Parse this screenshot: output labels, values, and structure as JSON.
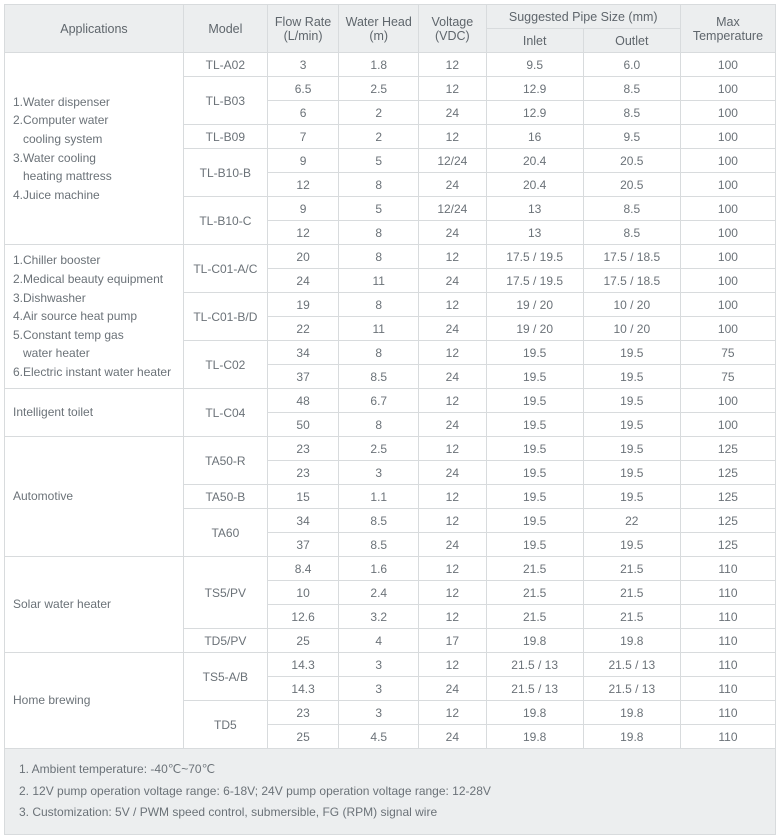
{
  "headers": {
    "applications": "Applications",
    "model": "Model",
    "flow_rate": "Flow Rate (L/min)",
    "water_head": "Water Head (m)",
    "voltage": "Voltage (VDC)",
    "pipe_group": "Suggested Pipe Size (mm)",
    "inlet": "Inlet",
    "outlet": "Outlet",
    "max_temp": "Max Temperature"
  },
  "groups": [
    {
      "app_html": "1.Water dispenser<br>2.Computer water<br>&nbsp;&nbsp;&nbsp;cooling system<br>3.Water cooling<br>&nbsp;&nbsp;&nbsp;heating mattress<br>4.Juice machine",
      "app_rowspan": 8,
      "models": [
        {
          "model": "TL-A02",
          "model_rowspan": 1,
          "rows": [
            {
              "flow": "3",
              "head": "1.8",
              "volt": "12",
              "inlet": "9.5",
              "outlet": "6.0",
              "temp": "100"
            }
          ]
        },
        {
          "model": "TL-B03",
          "model_rowspan": 2,
          "rows": [
            {
              "flow": "6.5",
              "head": "2.5",
              "volt": "12",
              "inlet": "12.9",
              "outlet": "8.5",
              "temp": "100"
            },
            {
              "flow": "6",
              "head": "2",
              "volt": "24",
              "inlet": "12.9",
              "outlet": "8.5",
              "temp": "100"
            }
          ]
        },
        {
          "model": "TL-B09",
          "model_rowspan": 1,
          "rows": [
            {
              "flow": "7",
              "head": "2",
              "volt": "12",
              "inlet": "16",
              "outlet": "9.5",
              "temp": "100"
            }
          ]
        },
        {
          "model": "TL-B10-B",
          "model_rowspan": 2,
          "rows": [
            {
              "flow": "9",
              "head": "5",
              "volt": "12/24",
              "inlet": "20.4",
              "outlet": "20.5",
              "temp": "100"
            },
            {
              "flow": "12",
              "head": "8",
              "volt": "24",
              "inlet": "20.4",
              "outlet": "20.5",
              "temp": "100"
            }
          ]
        },
        {
          "model": "TL-B10-C",
          "model_rowspan": 2,
          "rows": [
            {
              "flow": "9",
              "head": "5",
              "volt": "12/24",
              "inlet": "13",
              "outlet": "8.5",
              "temp": "100"
            },
            {
              "flow": "12",
              "head": "8",
              "volt": "24",
              "inlet": "13",
              "outlet": "8.5",
              "temp": "100"
            }
          ]
        }
      ]
    },
    {
      "app_html": "1.Chiller booster<br>2.Medical beauty equipment<br>3.Dishwasher<br>4.Air source heat pump<br>5.Constant temp gas<br>&nbsp;&nbsp;&nbsp;water heater<br>6.Electric instant water heater",
      "app_rowspan": 6,
      "models": [
        {
          "model": "TL-C01-A/C",
          "model_rowspan": 2,
          "rows": [
            {
              "flow": "20",
              "head": "8",
              "volt": "12",
              "inlet": "17.5 / 19.5",
              "outlet": "17.5 / 18.5",
              "temp": "100"
            },
            {
              "flow": "24",
              "head": "11",
              "volt": "24",
              "inlet": "17.5 / 19.5",
              "outlet": "17.5 / 18.5",
              "temp": "100"
            }
          ]
        },
        {
          "model": "TL-C01-B/D",
          "model_rowspan": 2,
          "rows": [
            {
              "flow": "19",
              "head": "8",
              "volt": "12",
              "inlet": "19 / 20",
              "outlet": "10 / 20",
              "temp": "100"
            },
            {
              "flow": "22",
              "head": "11",
              "volt": "24",
              "inlet": "19 / 20",
              "outlet": "10 / 20",
              "temp": "100"
            }
          ]
        },
        {
          "model": "TL-C02",
          "model_rowspan": 2,
          "rows": [
            {
              "flow": "34",
              "head": "8",
              "volt": "12",
              "inlet": "19.5",
              "outlet": "19.5",
              "temp": "75"
            },
            {
              "flow": "37",
              "head": "8.5",
              "volt": "24",
              "inlet": "19.5",
              "outlet": "19.5",
              "temp": "75"
            }
          ]
        }
      ]
    },
    {
      "app_html": "Intelligent toilet",
      "app_rowspan": 2,
      "models": [
        {
          "model": "TL-C04",
          "model_rowspan": 2,
          "rows": [
            {
              "flow": "48",
              "head": "6.7",
              "volt": "12",
              "inlet": "19.5",
              "outlet": "19.5",
              "temp": "100"
            },
            {
              "flow": "50",
              "head": "8",
              "volt": "24",
              "inlet": "19.5",
              "outlet": "19.5",
              "temp": "100"
            }
          ]
        }
      ]
    },
    {
      "app_html": "Automotive",
      "app_rowspan": 5,
      "models": [
        {
          "model": "TA50-R",
          "model_rowspan": 2,
          "rows": [
            {
              "flow": "23",
              "head": "2.5",
              "volt": "12",
              "inlet": "19.5",
              "outlet": "19.5",
              "temp": "125"
            },
            {
              "flow": "23",
              "head": "3",
              "volt": "24",
              "inlet": "19.5",
              "outlet": "19.5",
              "temp": "125"
            }
          ]
        },
        {
          "model": "TA50-B",
          "model_rowspan": 1,
          "rows": [
            {
              "flow": "15",
              "head": "1.1",
              "volt": "12",
              "inlet": "19.5",
              "outlet": "19.5",
              "temp": "125"
            }
          ]
        },
        {
          "model": "TA60",
          "model_rowspan": 2,
          "rows": [
            {
              "flow": "34",
              "head": "8.5",
              "volt": "12",
              "inlet": "19.5",
              "outlet": "22",
              "temp": "125"
            },
            {
              "flow": "37",
              "head": "8.5",
              "volt": "24",
              "inlet": "19.5",
              "outlet": "19.5",
              "temp": "125"
            }
          ]
        }
      ]
    },
    {
      "app_html": "Solar water heater",
      "app_rowspan": 4,
      "models": [
        {
          "model": "TS5/PV",
          "model_rowspan": 3,
          "rows": [
            {
              "flow": "8.4",
              "head": "1.6",
              "volt": "12",
              "inlet": "21.5",
              "outlet": "21.5",
              "temp": "110"
            },
            {
              "flow": "10",
              "head": "2.4",
              "volt": "12",
              "inlet": "21.5",
              "outlet": "21.5",
              "temp": "110"
            },
            {
              "flow": "12.6",
              "head": "3.2",
              "volt": "12",
              "inlet": "21.5",
              "outlet": "21.5",
              "temp": "110"
            }
          ]
        },
        {
          "model": "TD5/PV",
          "model_rowspan": 1,
          "rows": [
            {
              "flow": "25",
              "head": "4",
              "volt": "17",
              "inlet": "19.8",
              "outlet": "19.8",
              "temp": "110"
            }
          ]
        }
      ]
    },
    {
      "app_html": "Home brewing",
      "app_rowspan": 4,
      "models": [
        {
          "model": "TS5-A/B",
          "model_rowspan": 2,
          "rows": [
            {
              "flow": "14.3",
              "head": "3",
              "volt": "12",
              "inlet": "21.5 / 13",
              "outlet": "21.5 / 13",
              "temp": "110"
            },
            {
              "flow": "14.3",
              "head": "3",
              "volt": "24",
              "inlet": "21.5 / 13",
              "outlet": "21.5 / 13",
              "temp": "110"
            }
          ]
        },
        {
          "model": "TD5",
          "model_rowspan": 2,
          "rows": [
            {
              "flow": "23",
              "head": "3",
              "volt": "12",
              "inlet": "19.8",
              "outlet": "19.8",
              "temp": "110"
            },
            {
              "flow": "25",
              "head": "4.5",
              "volt": "24",
              "inlet": "19.8",
              "outlet": "19.8",
              "temp": "110"
            }
          ]
        }
      ]
    }
  ],
  "notes": [
    "1. Ambient temperature: -40℃~70℃",
    "2. 12V pump operation voltage range: 6-18V; 24V pump operation voltage range: 12-28V",
    "3. Customization: 5V / PWM speed control, submersible, FG (RPM) signal wire"
  ]
}
